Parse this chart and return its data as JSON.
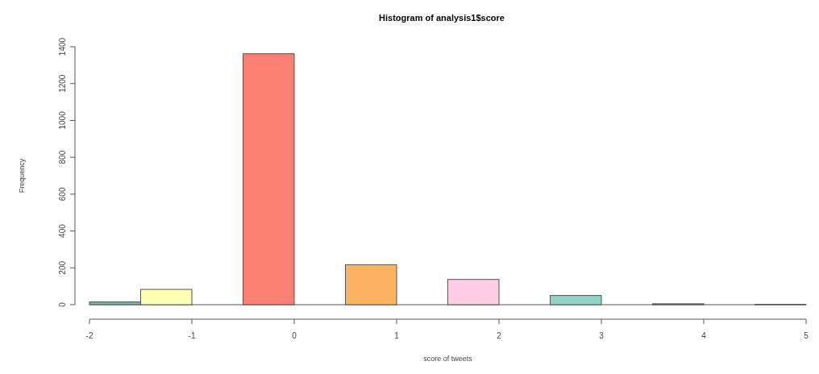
{
  "chart_data": {
    "type": "histogram",
    "title": "Histogram of analysis1$score",
    "xlabel": "score of tweets",
    "ylabel": "Frequency",
    "bins": [
      -2,
      -1.5,
      -1,
      -0.5,
      0,
      0.5,
      1,
      1.5,
      2,
      2.5,
      3,
      3.5,
      4,
      4.5,
      5
    ],
    "values": [
      15,
      83,
      0,
      1362,
      0,
      217,
      0,
      137,
      0,
      50,
      0,
      5,
      0,
      2
    ],
    "colors": [
      "#7fb5a5",
      "#ffffb3",
      "#bebada",
      "#fb8072",
      "#80b1d3",
      "#fdb462",
      "#b3de69",
      "#fccde5",
      "#d9d9d9",
      "#8dd3c7",
      "#ccebc5",
      "#8a8fb0",
      "#bc80bd",
      "#7a8fa0"
    ],
    "xlim": [
      -2,
      5
    ],
    "xticks": [
      -2,
      -1,
      0,
      1,
      2,
      3,
      4,
      5
    ],
    "ylim": [
      0,
      1400
    ],
    "yticks": [
      0,
      200,
      400,
      600,
      800,
      1000,
      1200,
      1400
    ],
    "grid": false
  }
}
